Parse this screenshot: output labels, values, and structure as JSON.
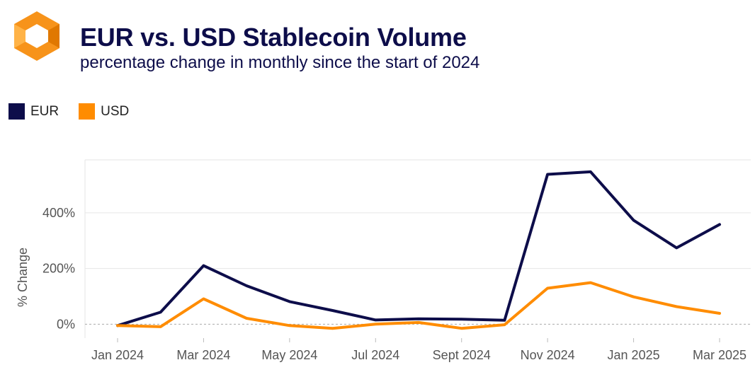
{
  "header": {
    "title": "EUR vs. USD Stablecoin Volume",
    "subtitle": "percentage change in monthly since the start of 2024"
  },
  "logo": {
    "icon": "orange-hexagon-logo-icon",
    "color": "#F7931A"
  },
  "colors": {
    "eur": "#0d0d4a",
    "usd": "#ff8c00",
    "axis_text": "#555555",
    "grid": "#e6e6e6"
  },
  "legend": [
    {
      "label": "EUR",
      "color": "#0d0d4a"
    },
    {
      "label": "USD",
      "color": "#ff8c00"
    }
  ],
  "chart_data": {
    "type": "line",
    "ylabel": "% Change",
    "xlabel": "",
    "ylim": [
      -50,
      590
    ],
    "yticks": [
      0,
      200,
      400
    ],
    "ytick_labels": [
      "0%",
      "200%",
      "400%"
    ],
    "x": [
      "Jan 2024",
      "Feb 2024",
      "Mar 2024",
      "Apr 2024",
      "May 2024",
      "Jun 2024",
      "Jul 2024",
      "Aug 2024",
      "Sept 2024",
      "Oct 2024",
      "Nov 2024",
      "Dec 2024",
      "Jan 2025",
      "Feb 2025",
      "Mar 2025"
    ],
    "xtick_labels": [
      "Jan 2024",
      "Mar 2024",
      "May 2024",
      "Jul 2024",
      "Sept 2024",
      "Nov 2024",
      "Jan 2025",
      "Mar 2025"
    ],
    "series": [
      {
        "name": "EUR",
        "values": [
          -5,
          43,
          210,
          138,
          81,
          49,
          15,
          19,
          18,
          14,
          538,
          547,
          373,
          274,
          358
        ]
      },
      {
        "name": "USD",
        "values": [
          -5,
          -9,
          91,
          21,
          -5,
          -15,
          0,
          6,
          -15,
          -2,
          129,
          149,
          98,
          63,
          39
        ]
      }
    ],
    "grid": true,
    "legend_position": "top-left"
  }
}
